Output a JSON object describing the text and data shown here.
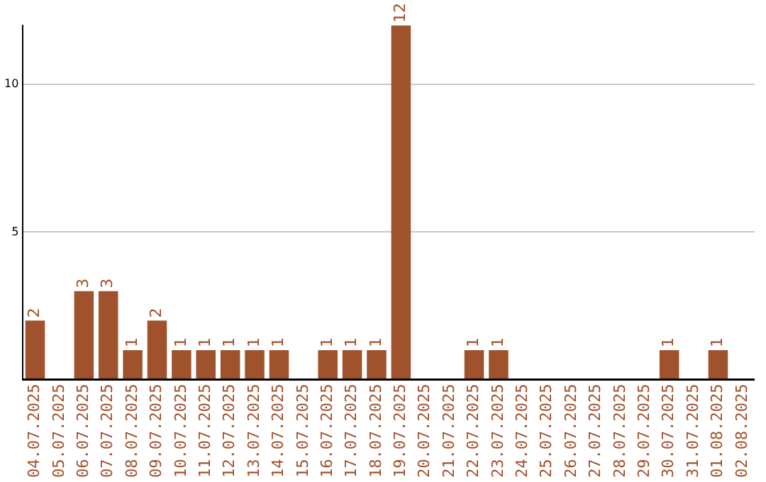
{
  "chart_data": {
    "type": "bar",
    "categories": [
      "04.07.2025",
      "05.07.2025",
      "06.07.2025",
      "07.07.2025",
      "08.07.2025",
      "09.07.2025",
      "10.07.2025",
      "11.07.2025",
      "12.07.2025",
      "13.07.2025",
      "14.07.2025",
      "15.07.2025",
      "16.07.2025",
      "17.07.2025",
      "18.07.2025",
      "19.07.2025",
      "20.07.2025",
      "21.07.2025",
      "22.07.2025",
      "23.07.2025",
      "24.07.2025",
      "25.07.2025",
      "26.07.2025",
      "27.07.2025",
      "28.07.2025",
      "29.07.2025",
      "30.07.2025",
      "31.07.2025",
      "01.08.2025",
      "02.08.2025"
    ],
    "values": [
      2,
      0,
      3,
      3,
      1,
      2,
      1,
      1,
      1,
      1,
      1,
      0,
      1,
      1,
      1,
      12,
      0,
      0,
      1,
      1,
      0,
      0,
      0,
      0,
      0,
      0,
      1,
      0,
      1,
      0
    ],
    "value_labels": [
      "2",
      null,
      "3",
      "3",
      "1",
      "2",
      "1",
      "1",
      "1",
      "1",
      "1",
      null,
      "1",
      "1",
      "1",
      "12",
      null,
      null,
      "1",
      "1",
      null,
      null,
      null,
      null,
      null,
      null,
      "1",
      null,
      "1",
      null
    ],
    "color": "#a0522d",
    "ylim": [
      0,
      12
    ],
    "yticks": [
      {
        "value": 0,
        "label": null
      },
      5,
      10
    ],
    "grid": "y",
    "legend": false
  }
}
